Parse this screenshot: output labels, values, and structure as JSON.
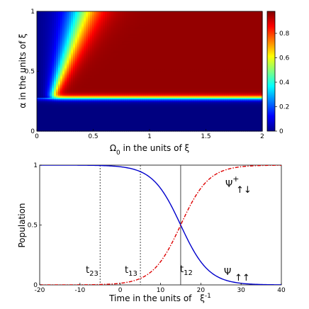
{
  "chart_data": [
    {
      "type": "heatmap",
      "title": "",
      "xlabel_prefix": "Ω",
      "xlabel_sub": "0",
      "xlabel_suffix": " in the units of ξ",
      "ylabel": "α in the units of ξ",
      "xlim": [
        0,
        2
      ],
      "ylim": [
        0,
        1
      ],
      "x_ticks": [
        0,
        0.5,
        1,
        1.5,
        2
      ],
      "x_tick_labels": [
        "0",
        "0.5",
        "1",
        "1.5",
        "2"
      ],
      "y_ticks": [
        0,
        0.5,
        1
      ],
      "y_tick_labels": [
        "0",
        "0.5",
        "1"
      ],
      "colorbar": {
        "range": [
          0,
          0.98
        ],
        "ticks": [
          0,
          0.2,
          0.4,
          0.6,
          0.8
        ],
        "tick_labels": [
          "0",
          "0.2",
          "0.4",
          "0.6",
          "0.8"
        ],
        "colormap": "jet"
      },
      "features": {
        "horizontal_boundary_alpha": 0.28,
        "diagonal_boundary_start": [
          0.18,
          0.28
        ],
        "diagonal_boundary_end": [
          0.45,
          1.0
        ],
        "low_region_value": 0.0,
        "high_region_value": 0.98
      }
    },
    {
      "type": "line",
      "title": "",
      "xlabel_prefix": "Time in the units of ",
      "xlabel_symbol": "ξ",
      "xlabel_sup": "-1",
      "ylabel": "Population",
      "xlim": [
        -20,
        40
      ],
      "ylim": [
        0,
        1
      ],
      "x_ticks": [
        -20,
        -10,
        0,
        10,
        20,
        30,
        40
      ],
      "x_tick_labels": [
        "-20",
        "-10",
        "0",
        "10",
        "20",
        "30",
        "40"
      ],
      "y_ticks": [
        0,
        0.5,
        1
      ],
      "y_tick_labels": [
        "0",
        "0.5",
        "1"
      ],
      "series": [
        {
          "label": "Ψ↑↑",
          "label_main": "Ψ",
          "label_sub": "↑↑",
          "color": "#0000cc",
          "style": "solid",
          "center": 15,
          "width": 3.5,
          "direction": "decreasing"
        },
        {
          "label": "Ψ+↑↓",
          "label_main": "Ψ",
          "label_sup": "+",
          "label_sub": "↑↓",
          "color": "#dd0000",
          "style": "dashdot",
          "center": 15,
          "width": 3.5,
          "direction": "increasing"
        }
      ],
      "vlines": [
        {
          "x": -5,
          "label_main": "t",
          "label_sub": "23",
          "style": "dotted"
        },
        {
          "x": 5,
          "label_main": "t",
          "label_sub": "13",
          "style": "dotted"
        },
        {
          "x": 15,
          "label_main": "t",
          "label_sub": "12",
          "style": "solid"
        }
      ]
    }
  ]
}
